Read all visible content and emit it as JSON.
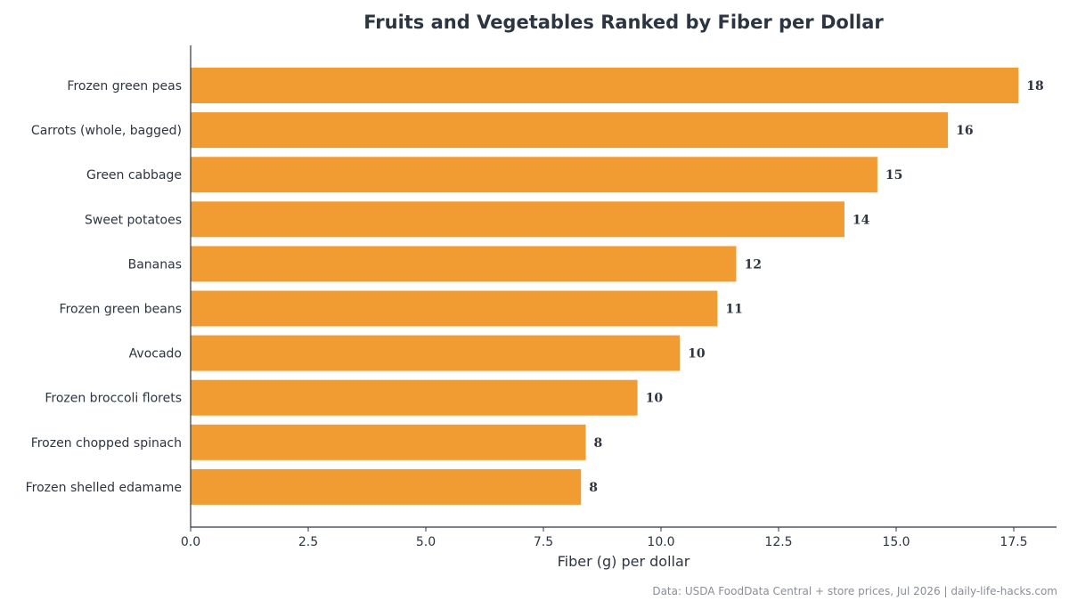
{
  "chart_data": {
    "type": "bar",
    "orientation": "horizontal",
    "title": "Fruits and Vegetables Ranked by Fiber per Dollar",
    "xlabel": "Fiber (g) per dollar",
    "ylabel": "",
    "categories": [
      "Frozen green peas",
      "Carrots (whole, bagged)",
      "Green cabbage",
      "Sweet potatoes",
      "Bananas",
      "Frozen green beans",
      "Avocado",
      "Frozen broccoli florets",
      "Frozen chopped spinach",
      "Frozen shelled edamame"
    ],
    "values": [
      17.6,
      16.1,
      14.6,
      13.9,
      11.6,
      11.2,
      10.4,
      9.5,
      8.4,
      8.3
    ],
    "value_labels": [
      "18",
      "16",
      "15",
      "14",
      "12",
      "11",
      "10",
      "10",
      "8",
      "8"
    ],
    "xlim": [
      0,
      18.5
    ],
    "xticks": [
      0,
      2.5,
      5,
      7.5,
      10,
      12.5,
      15,
      17.5
    ],
    "xtick_labels": [
      "0.0",
      "2.5",
      "5.0",
      "7.5",
      "10.0",
      "12.5",
      "15.0",
      "17.5"
    ],
    "grid": false,
    "legend": "none",
    "bar_color": "#f19c33",
    "text_color": "#2d3540"
  },
  "footnote": "Data: USDA FoodData Central + store prices, Jul 2026 | daily-life-hacks.com"
}
